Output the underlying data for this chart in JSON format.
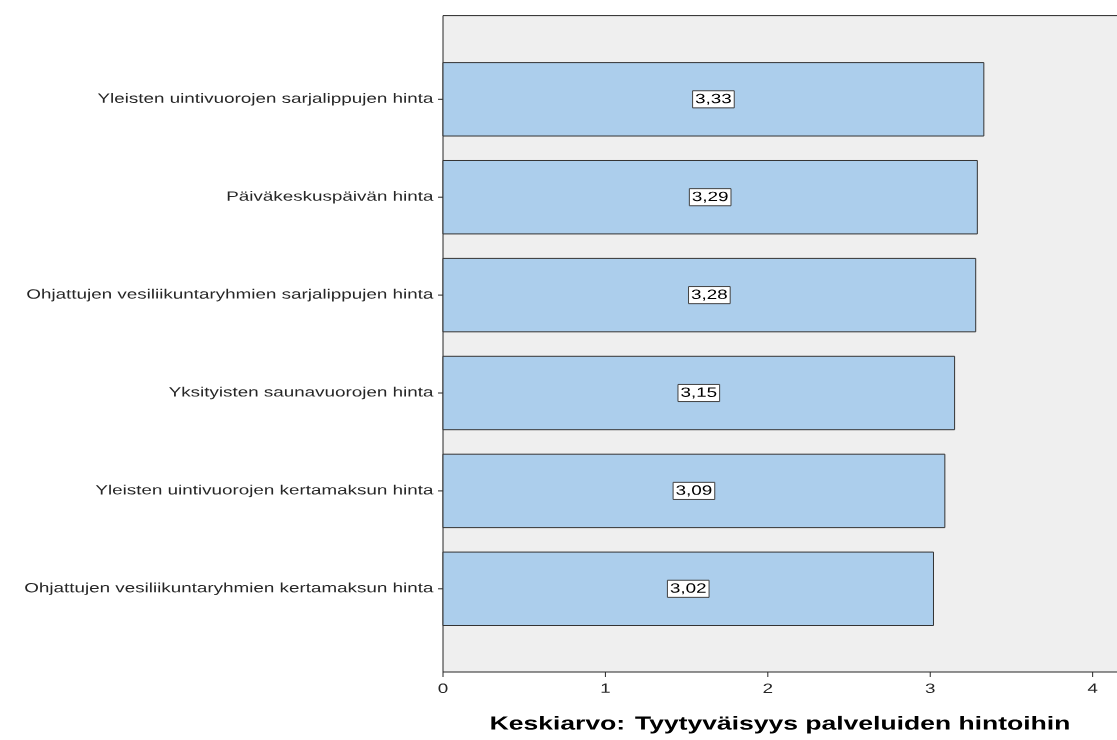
{
  "chart_data": {
    "type": "bar",
    "orientation": "horizontal",
    "xlabel": "Keskiarvo: Tyytyväisyys palveluiden hintoihin",
    "categories": [
      "Yleisten uintivuorojen sarjalippujen hinta",
      "Päiväkeskuspäivän hinta",
      "Ohjattujen vesiliikuntaryhmien sarjalippujen hinta",
      "Yksityisten saunavuorojen hinta",
      "Yleisten uintivuorojen kertamaksun hinta",
      "Ohjattujen vesiliikuntaryhmien kertamaksun hinta"
    ],
    "values": [
      3.33,
      3.29,
      3.28,
      3.15,
      3.09,
      3.02
    ],
    "value_labels": [
      "3,33",
      "3,29",
      "3,28",
      "3,15",
      "3,09",
      "3,02"
    ],
    "color": "#acceec",
    "xlim": [
      0,
      4.15
    ],
    "xticks": [
      0,
      1,
      2,
      3,
      4
    ]
  }
}
